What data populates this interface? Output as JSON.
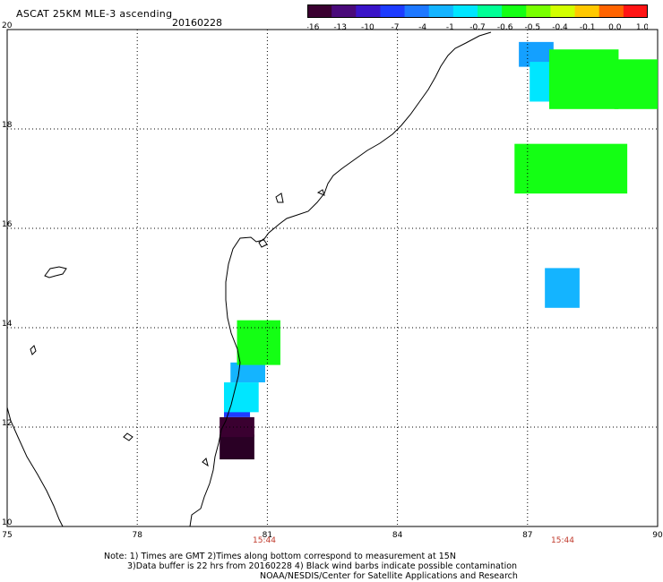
{
  "header": {
    "title": "ASCAT 25KM MLE-3 ascending",
    "date": "20160228"
  },
  "colorbar": {
    "ticks": [
      "-16",
      "-13",
      "-10",
      "-7",
      "-4",
      "-1",
      "-0.7",
      "-0.6",
      "-0.5",
      "-0.4",
      "-0.1",
      "0.0",
      "1.0"
    ],
    "colors": [
      "#3a0030",
      "#4a0a7a",
      "#3a14c8",
      "#1e3cff",
      "#1e78ff",
      "#14b4ff",
      "#00e6ff",
      "#00ff96",
      "#14ff14",
      "#78ff00",
      "#d2ff00",
      "#ffc800",
      "#ff6400",
      "#ff1414"
    ]
  },
  "axes": {
    "x_ticks": [
      "75",
      "78",
      "81",
      "84",
      "87",
      "90"
    ],
    "y_ticks": [
      "20",
      "18",
      "16",
      "14",
      "12",
      "10"
    ],
    "time_labels": [
      "15:44",
      "15:44"
    ]
  },
  "notes": {
    "line1": "Note: 1) Times are GMT 2)Times along bottom correspond to measurement at 15N",
    "line2": "3)Data buffer is 22 hrs from 20160228 4) Black wind barbs indicate possible contamination",
    "line3": "NOAA/NESDIS/Center for Satellite Applications and Research"
  },
  "map_data": {
    "lon_range": [
      75,
      90
    ],
    "lat_range": [
      10,
      20
    ],
    "cells": [
      {
        "lon": 80.3,
        "lat": 11.6,
        "w": 0.8,
        "h": 0.5,
        "color": "#2a0025"
      },
      {
        "lon": 80.3,
        "lat": 12.0,
        "w": 0.8,
        "h": 0.4,
        "color": "#3a0030"
      },
      {
        "lon": 80.3,
        "lat": 12.3,
        "w": 0.6,
        "h": 0.2,
        "color": "#1e3cff"
      },
      {
        "lon": 80.4,
        "lat": 12.6,
        "w": 0.8,
        "h": 0.6,
        "color": "#00e6ff"
      },
      {
        "lon": 80.55,
        "lat": 13.1,
        "w": 0.8,
        "h": 0.4,
        "color": "#14b4ff"
      },
      {
        "lon": 80.8,
        "lat": 13.7,
        "w": 1.0,
        "h": 0.9,
        "color": "#14ff14"
      },
      {
        "lon": 87.2,
        "lat": 19.5,
        "w": 0.8,
        "h": 0.5,
        "color": "#14a0ff"
      },
      {
        "lon": 87.5,
        "lat": 18.95,
        "w": 0.9,
        "h": 0.8,
        "color": "#00e6ff"
      },
      {
        "lon": 88.3,
        "lat": 19.0,
        "w": 1.6,
        "h": 1.2,
        "color": "#14ff14"
      },
      {
        "lon": 89.5,
        "lat": 18.9,
        "w": 1.0,
        "h": 1.0,
        "color": "#14ff14"
      },
      {
        "lon": 88.0,
        "lat": 17.2,
        "w": 2.6,
        "h": 1.0,
        "color": "#14ff14"
      },
      {
        "lon": 87.8,
        "lat": 14.8,
        "w": 0.8,
        "h": 0.8,
        "color": "#14b4ff"
      }
    ]
  }
}
